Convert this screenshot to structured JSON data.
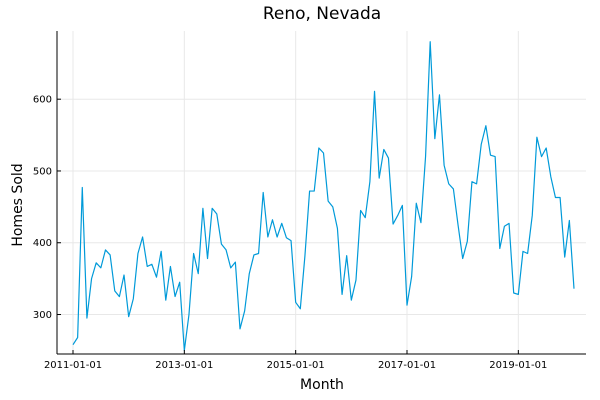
{
  "chart_data": {
    "type": "line",
    "title": "Reno, Nevada",
    "xlabel": "Month",
    "ylabel": "Homes Sold",
    "x_start": "2011-01-01",
    "x_end": "2019-12-01",
    "x_ticks": [
      "2011-01-01",
      "2013-01-01",
      "2015-01-01",
      "2017-01-01",
      "2019-01-01"
    ],
    "y_ticks": [
      300,
      400,
      500,
      600
    ],
    "ylim": [
      245,
      695
    ],
    "grid": true,
    "legend": false,
    "color": "#009AD9",
    "series": [
      {
        "values": [
          258,
          268,
          477,
          295,
          350,
          372,
          365,
          390,
          383,
          333,
          325,
          355,
          297,
          322,
          385,
          408,
          367,
          370,
          352,
          388,
          320,
          367,
          325,
          345,
          250,
          300,
          385,
          357,
          448,
          378,
          448,
          440,
          398,
          390,
          365,
          373,
          280,
          305,
          357,
          383,
          385,
          470,
          408,
          432,
          408,
          427,
          407,
          403,
          317,
          308,
          382,
          472,
          472,
          532,
          525,
          458,
          450,
          420,
          328,
          382,
          320,
          348,
          445,
          435,
          485,
          611,
          490,
          530,
          518,
          426,
          438,
          452,
          313,
          353,
          455,
          428,
          520,
          680,
          545,
          606,
          508,
          482,
          475,
          425,
          378,
          402,
          485,
          482,
          537,
          563,
          522,
          520,
          392,
          423,
          427,
          330,
          328,
          388,
          385,
          438,
          547,
          520,
          532,
          492,
          463,
          463,
          380,
          431,
          336
        ]
      }
    ]
  }
}
